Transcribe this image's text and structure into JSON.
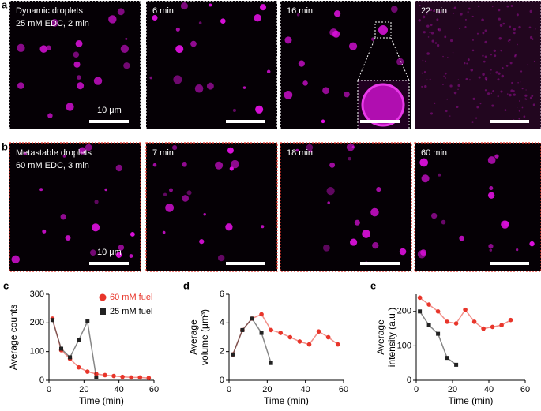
{
  "panels": {
    "row_a": {
      "letter": "a",
      "labels": [
        "Dynamic droplets\n25 mM EDC, 2 min",
        "6 min",
        "16 min",
        "22 min"
      ],
      "scale_bar": "10 μm"
    },
    "row_b": {
      "letter": "b",
      "labels": [
        "Metastable droplets\n60 mM EDC, 3 min",
        "7 min",
        "18 min",
        "60 min"
      ],
      "scale_bar": "10 μm"
    }
  },
  "chart_data": [
    {
      "type": "scatter",
      "panel_label": "c",
      "ylabel": "Average counts",
      "xlabel": "Time (min)",
      "xlim": [
        0,
        60
      ],
      "xticks": [
        0,
        20,
        40,
        60
      ],
      "ylim": [
        0,
        300
      ],
      "yticks": [
        0,
        100,
        200,
        300
      ],
      "legend": "top-right",
      "series": [
        {
          "name": "60 mM fuel",
          "color": "#e8352a",
          "marker": "circle",
          "x": [
            2,
            7,
            12,
            17,
            22,
            27,
            32,
            37,
            42,
            47,
            52,
            57
          ],
          "values": [
            215,
            105,
            75,
            45,
            30,
            22,
            18,
            15,
            12,
            10,
            10,
            8
          ]
        },
        {
          "name": "25 mM fuel",
          "color": "#222222",
          "marker": "square",
          "x": [
            2,
            7,
            12,
            17,
            22,
            27
          ],
          "values": [
            210,
            110,
            80,
            140,
            205,
            10
          ]
        }
      ]
    },
    {
      "type": "scatter",
      "panel_label": "d",
      "ylabel": [
        "Average",
        "volume (μm³)"
      ],
      "xlabel": "Time (min)",
      "xlim": [
        0,
        60
      ],
      "xticks": [
        0,
        20,
        40,
        60
      ],
      "ylim": [
        0,
        6
      ],
      "yticks": [
        0,
        2,
        4,
        6
      ],
      "series": [
        {
          "color": "#e8352a",
          "marker": "circle",
          "x": [
            2,
            7,
            12,
            17,
            22,
            27,
            32,
            37,
            42,
            47,
            52,
            57
          ],
          "values": [
            1.8,
            3.5,
            4.3,
            4.6,
            3.5,
            3.3,
            3.0,
            2.7,
            2.5,
            3.4,
            3.0,
            2.5
          ]
        },
        {
          "color": "#222222",
          "marker": "square",
          "x": [
            2,
            7,
            12,
            17,
            22
          ],
          "values": [
            1.8,
            3.5,
            4.3,
            3.3,
            1.2
          ]
        }
      ]
    },
    {
      "type": "scatter",
      "panel_label": "e",
      "ylabel": [
        "Average",
        "intensity (a.u.)"
      ],
      "xlabel": "Time (min)",
      "xlim": [
        0,
        60
      ],
      "xticks": [
        0,
        20,
        40,
        60
      ],
      "ylim": [
        0,
        250
      ],
      "yticks": [
        0,
        100,
        200
      ],
      "series": [
        {
          "color": "#e8352a",
          "marker": "circle",
          "x": [
            2,
            7,
            12,
            17,
            22,
            27,
            32,
            37,
            42,
            47,
            52
          ],
          "values": [
            240,
            220,
            200,
            170,
            165,
            205,
            170,
            150,
            155,
            160,
            175
          ]
        },
        {
          "color": "#222222",
          "marker": "square",
          "x": [
            2,
            7,
            12,
            17,
            22
          ],
          "values": [
            200,
            160,
            135,
            65,
            45
          ]
        }
      ]
    }
  ]
}
